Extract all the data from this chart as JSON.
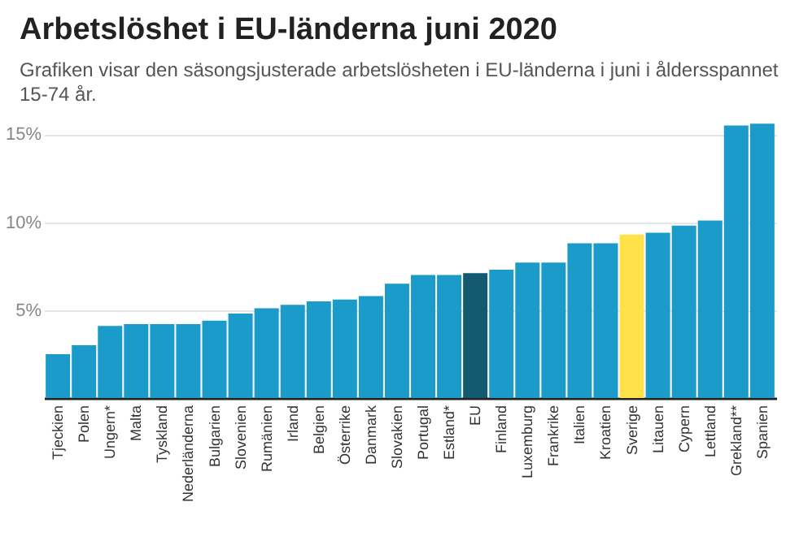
{
  "chart_data": {
    "type": "bar",
    "title": "Arbetslöshet i EU-länderna juni 2020",
    "subtitle": "Grafiken visar den säsongsjusterade arbetslösheten i EU-länderna i juni i åldersspannet 15-74 år.",
    "categories": [
      "Tjeckien",
      "Polen",
      "Ungern*",
      "Malta",
      "Tyskland",
      "Nederländerna",
      "Bulgarien",
      "Slovenien",
      "Rumänien",
      "Irland",
      "Belgien",
      "Österrike",
      "Danmark",
      "Slovakien",
      "Portugal",
      "Estland*",
      "EU",
      "Finland",
      "Luxemburg",
      "Frankrike",
      "Italien",
      "Kroatien",
      "Sverige",
      "Litauen",
      "Cypern",
      "Lettland",
      "Grekland**",
      "Spanien"
    ],
    "values": [
      2.5,
      3.0,
      4.1,
      4.2,
      4.2,
      4.2,
      4.4,
      4.8,
      5.1,
      5.3,
      5.5,
      5.6,
      5.8,
      6.5,
      7.0,
      7.0,
      7.1,
      7.3,
      7.7,
      7.7,
      8.8,
      8.8,
      9.3,
      9.4,
      9.8,
      10.1,
      15.5,
      15.6
    ],
    "colors": [
      "#1a9bc9",
      "#1a9bc9",
      "#1a9bc9",
      "#1a9bc9",
      "#1a9bc9",
      "#1a9bc9",
      "#1a9bc9",
      "#1a9bc9",
      "#1a9bc9",
      "#1a9bc9",
      "#1a9bc9",
      "#1a9bc9",
      "#1a9bc9",
      "#1a9bc9",
      "#1a9bc9",
      "#1a9bc9",
      "#135a70",
      "#1a9bc9",
      "#1a9bc9",
      "#1a9bc9",
      "#1a9bc9",
      "#1a9bc9",
      "#ffe14a",
      "#1a9bc9",
      "#1a9bc9",
      "#1a9bc9",
      "#1a9bc9",
      "#1a9bc9"
    ],
    "ylim": [
      0,
      15.8
    ],
    "yticks": [
      {
        "value": 5,
        "label": "5%"
      },
      {
        "value": 10,
        "label": "10%"
      },
      {
        "value": 15,
        "label": "15%"
      }
    ],
    "grid": true
  }
}
